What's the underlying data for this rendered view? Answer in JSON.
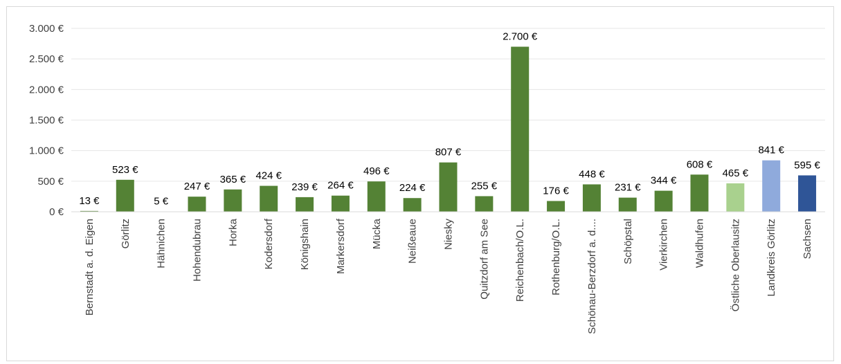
{
  "chart_data": {
    "type": "bar",
    "categories": [
      "Bernstadt a. d. Eigen",
      "Görlitz",
      "Hähnichen",
      "Hohendubrau",
      "Horka",
      "Kodersdorf",
      "Königshain",
      "Markersdorf",
      "Mücka",
      "Neißeaue",
      "Niesky",
      "Quitzdorf am See",
      "Reichenbach/O.L.",
      "Rothenburg/O.L.",
      "Schönau-Berzdorf a. d....",
      "Schöpstal",
      "Vierkirchen",
      "Waldhufen",
      "Östliche Oberlausitz",
      "Landkreis Görlitz",
      "Sachsen"
    ],
    "values": [
      13,
      523,
      5,
      247,
      365,
      424,
      239,
      264,
      496,
      224,
      807,
      255,
      2700,
      176,
      448,
      231,
      344,
      608,
      465,
      841,
      595
    ],
    "value_labels": [
      "13 €",
      "523 €",
      "5 €",
      "247 €",
      "365 €",
      "424 €",
      "239 €",
      "264 €",
      "496 €",
      "224 €",
      "807 €",
      "255 €",
      "2.700 €",
      "176 €",
      "448 €",
      "231 €",
      "344 €",
      "608 €",
      "465 €",
      "841 €",
      "595 €"
    ],
    "colors": [
      "#548235",
      "#548235",
      "#548235",
      "#548235",
      "#548235",
      "#548235",
      "#548235",
      "#548235",
      "#548235",
      "#548235",
      "#548235",
      "#548235",
      "#548235",
      "#548235",
      "#548235",
      "#548235",
      "#548235",
      "#548235",
      "#a9d18e",
      "#8faadc",
      "#2f5597"
    ],
    "ylim": [
      0,
      3000
    ],
    "yticks": [
      {
        "value": 0,
        "label": "0 €"
      },
      {
        "value": 500,
        "label": "500 €"
      },
      {
        "value": 1000,
        "label": "1.000 €"
      },
      {
        "value": 1500,
        "label": "1.500 €"
      },
      {
        "value": 2000,
        "label": "2.000 €"
      },
      {
        "value": 2500,
        "label": "2.500 €"
      },
      {
        "value": 3000,
        "label": "3.000 €"
      }
    ],
    "grid": true
  }
}
